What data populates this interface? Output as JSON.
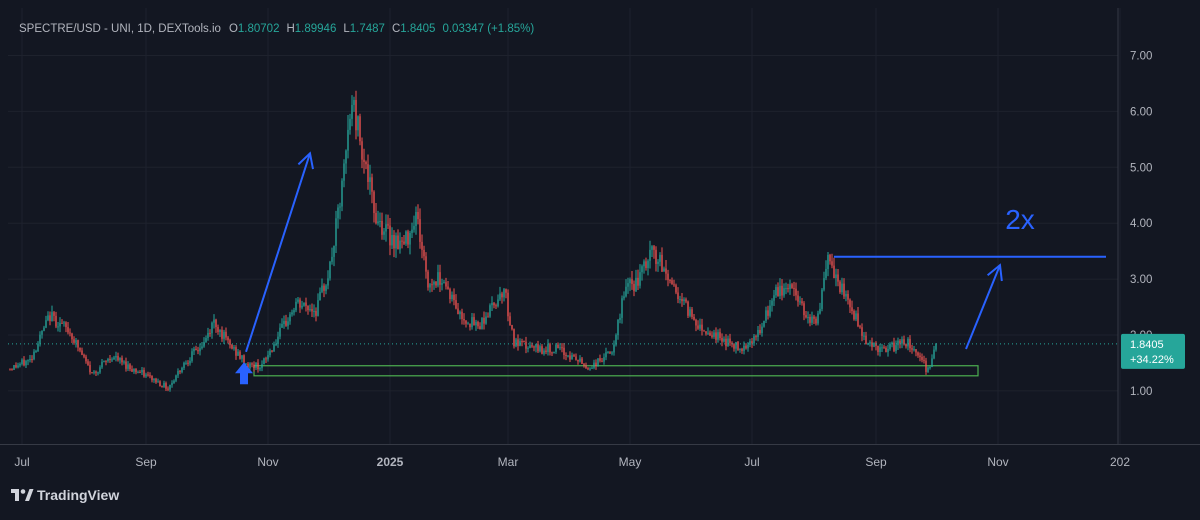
{
  "header": {
    "symbol": "SPECTRE/USD - UNI, 1D, DEXTools.io",
    "o_label": "O",
    "o_value": "1.80702",
    "h_label": "H",
    "h_value": "1.89946",
    "l_label": "L",
    "l_value": "1.7487",
    "c_label": "C",
    "c_value": "1.8405",
    "change": "0.03347 (+1.85%)"
  },
  "price_tag": {
    "price": "1.8405",
    "change": "+34.22%"
  },
  "annotation_text": "2x",
  "brand": {
    "name": "TradingView"
  },
  "colors": {
    "background": "#131722",
    "up": "#26a69a",
    "down": "#ef5350",
    "drawing": "#2962ff",
    "zone": "#4caf50",
    "text": "#b2b5be"
  },
  "chart_data": {
    "type": "candlestick",
    "x_range": [
      "2024-06-25",
      "2025-12-31"
    ],
    "ylim": [
      0.05,
      7.85
    ],
    "y_ticks": [
      "1.00",
      "2.00",
      "3.00",
      "4.00",
      "5.00",
      "6.00",
      "7.00"
    ],
    "x_ticks": [
      {
        "date": "2024-07-01",
        "label": "Jul",
        "bold": false
      },
      {
        "date": "2024-09-01",
        "label": "Sep",
        "bold": false
      },
      {
        "date": "2024-11-01",
        "label": "Nov",
        "bold": false
      },
      {
        "date": "2025-01-01",
        "label": "2025",
        "bold": true
      },
      {
        "date": "2025-03-01",
        "label": "Mar",
        "bold": false
      },
      {
        "date": "2025-05-01",
        "label": "May",
        "bold": false
      },
      {
        "date": "2025-07-01",
        "label": "Jul",
        "bold": false
      },
      {
        "date": "2025-09-01",
        "label": "Sep",
        "bold": false
      },
      {
        "date": "2025-11-01",
        "label": "Nov",
        "bold": false
      },
      {
        "date": "2026-01-01",
        "label": "202",
        "bold": false
      }
    ],
    "price_anchors": [
      [
        "2024-06-25",
        1.4
      ],
      [
        "2024-07-05",
        1.55
      ],
      [
        "2024-07-15",
        2.35
      ],
      [
        "2024-07-25",
        2.05
      ],
      [
        "2024-08-05",
        1.3
      ],
      [
        "2024-08-15",
        1.62
      ],
      [
        "2024-08-25",
        1.4
      ],
      [
        "2024-09-05",
        1.2
      ],
      [
        "2024-09-12",
        1.05
      ],
      [
        "2024-09-20",
        1.5
      ],
      [
        "2024-09-30",
        1.85
      ],
      [
        "2024-10-05",
        2.25
      ],
      [
        "2024-10-12",
        1.85
      ],
      [
        "2024-10-22",
        1.45
      ],
      [
        "2024-10-29",
        1.45
      ],
      [
        "2024-11-05",
        1.9
      ],
      [
        "2024-11-15",
        2.55
      ],
      [
        "2024-11-25",
        2.45
      ],
      [
        "2024-12-02",
        3.2
      ],
      [
        "2024-12-08",
        4.6
      ],
      [
        "2024-12-13",
        6.2
      ],
      [
        "2024-12-18",
        5.4
      ],
      [
        "2024-12-24",
        4.2
      ],
      [
        "2024-12-31",
        3.8
      ],
      [
        "2025-01-08",
        3.6
      ],
      [
        "2025-01-14",
        4.2
      ],
      [
        "2025-01-20",
        2.9
      ],
      [
        "2025-01-27",
        3.05
      ],
      [
        "2025-02-05",
        2.35
      ],
      [
        "2025-02-14",
        2.15
      ],
      [
        "2025-02-20",
        2.45
      ],
      [
        "2025-02-27",
        2.85
      ],
      [
        "2025-03-04",
        1.85
      ],
      [
        "2025-03-15",
        1.75
      ],
      [
        "2025-03-25",
        1.75
      ],
      [
        "2025-04-05",
        1.55
      ],
      [
        "2025-04-10",
        1.4
      ],
      [
        "2025-04-18",
        1.6
      ],
      [
        "2025-04-23",
        1.75
      ],
      [
        "2025-04-28",
        2.8
      ],
      [
        "2025-05-05",
        2.95
      ],
      [
        "2025-05-12",
        3.5
      ],
      [
        "2025-05-19",
        3.1
      ],
      [
        "2025-05-28",
        2.55
      ],
      [
        "2025-06-05",
        2.15
      ],
      [
        "2025-06-15",
        1.95
      ],
      [
        "2025-06-25",
        1.75
      ],
      [
        "2025-07-05",
        2.05
      ],
      [
        "2025-07-12",
        2.7
      ],
      [
        "2025-07-20",
        2.9
      ],
      [
        "2025-07-28",
        2.4
      ],
      [
        "2025-08-02",
        2.2
      ],
      [
        "2025-08-08",
        3.3
      ],
      [
        "2025-08-14",
        2.85
      ],
      [
        "2025-08-20",
        2.45
      ],
      [
        "2025-08-27",
        1.9
      ],
      [
        "2025-09-05",
        1.7
      ],
      [
        "2025-09-15",
        1.9
      ],
      [
        "2025-09-22",
        1.7
      ],
      [
        "2025-09-26",
        1.4
      ],
      [
        "2025-09-29",
        1.55
      ],
      [
        "2025-10-01",
        1.84
      ]
    ],
    "volatility": 0.045,
    "seed": 12345,
    "last_close": 1.8405,
    "drawings": {
      "support_zone": {
        "start": "2024-10-25",
        "end": "2025-10-22",
        "low": 1.27,
        "high": 1.45
      },
      "resistance_line": {
        "start": "2025-08-11",
        "end": "2025-12-25",
        "price": 3.4
      },
      "arrow_up_1": {
        "start": "2024-10-21",
        "start_price": 1.7,
        "end": "2024-11-22",
        "end_price": 5.25
      },
      "arrow_up_2": {
        "start": "2025-10-16",
        "start_price": 1.75,
        "end": "2025-11-02",
        "end_price": 3.25
      },
      "small_arrow": {
        "date": "2024-10-20",
        "price": 1.12
      },
      "label_2x": {
        "date": "2025-11-12",
        "price": 3.9
      }
    }
  }
}
